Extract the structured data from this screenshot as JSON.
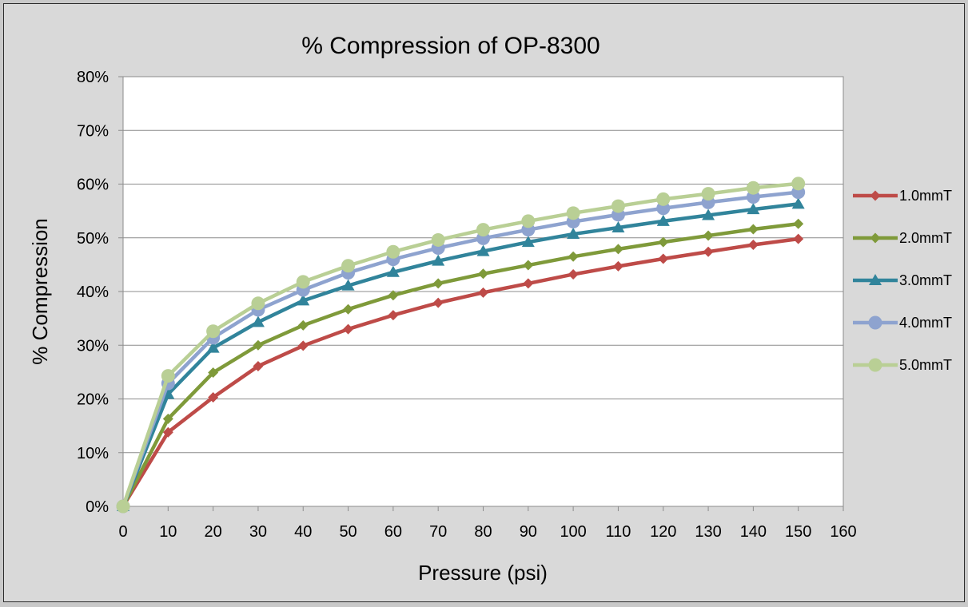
{
  "chart_data": {
    "type": "line",
    "title": "% Compression of OP-8300",
    "xlabel": "Pressure (psi)",
    "ylabel": "% Compression",
    "xlim": [
      0,
      160
    ],
    "x_ticks": [
      0,
      10,
      20,
      30,
      40,
      50,
      60,
      70,
      80,
      90,
      100,
      110,
      120,
      130,
      140,
      150,
      160
    ],
    "ylim": [
      0,
      80
    ],
    "y_ticks": [
      0,
      10,
      20,
      30,
      40,
      50,
      60,
      70,
      80
    ],
    "y_tick_labels": [
      "0%",
      "10%",
      "20%",
      "30%",
      "40%",
      "50%",
      "60%",
      "70%",
      "80%"
    ],
    "y_unit": "%",
    "grid": "horizontal",
    "legend_position": "right",
    "x": [
      0,
      10,
      20,
      30,
      40,
      50,
      60,
      70,
      80,
      90,
      100,
      110,
      120,
      130,
      140,
      150
    ],
    "series": [
      {
        "name": "1.0mmT",
        "color": "#be4b48",
        "marker": "diamond",
        "values": [
          0,
          13.8,
          20.3,
          26.1,
          29.9,
          33.0,
          35.6,
          37.9,
          39.8,
          41.5,
          43.2,
          44.7,
          46.1,
          47.4,
          48.7,
          49.8
        ]
      },
      {
        "name": "2.0mmT",
        "color": "#7f9a3a",
        "marker": "diamond",
        "values": [
          0,
          16.3,
          24.9,
          30.0,
          33.7,
          36.7,
          39.3,
          41.5,
          43.3,
          44.9,
          46.5,
          47.9,
          49.2,
          50.4,
          51.6,
          52.6
        ]
      },
      {
        "name": "3.0mmT",
        "color": "#31849b",
        "marker": "triangle",
        "values": [
          0,
          20.9,
          29.5,
          34.3,
          38.3,
          41.1,
          43.6,
          45.7,
          47.5,
          49.2,
          50.7,
          51.9,
          53.1,
          54.2,
          55.3,
          56.3
        ]
      },
      {
        "name": "4.0mmT",
        "color": "#8ea3cf",
        "marker": "circle",
        "values": [
          0,
          22.9,
          31.4,
          36.6,
          40.3,
          43.5,
          46.0,
          48.1,
          49.9,
          51.5,
          53.0,
          54.3,
          55.5,
          56.6,
          57.6,
          58.5
        ]
      },
      {
        "name": "5.0mmT",
        "color": "#b9cf95",
        "marker": "circle",
        "values": [
          0,
          24.3,
          32.6,
          37.8,
          41.8,
          44.8,
          47.4,
          49.6,
          51.5,
          53.1,
          54.6,
          55.9,
          57.2,
          58.2,
          59.3,
          60.1
        ]
      }
    ]
  }
}
